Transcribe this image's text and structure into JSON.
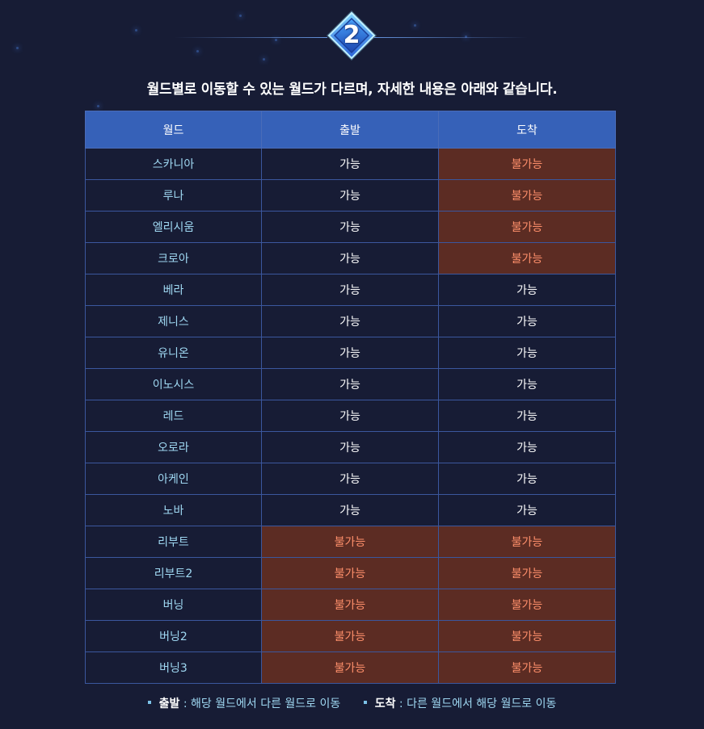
{
  "header": {
    "step_number": "2",
    "headline": "월드별로 이동할 수 있는 월드가 다르며, 자세한 내용은 아래와 같습니다."
  },
  "table": {
    "headers": [
      "월드",
      "출발",
      "도착"
    ],
    "rows": [
      {
        "world": "스카니아",
        "departure": "가능",
        "arrival": "불가능"
      },
      {
        "world": "루나",
        "departure": "가능",
        "arrival": "불가능"
      },
      {
        "world": "엘리시움",
        "departure": "가능",
        "arrival": "불가능"
      },
      {
        "world": "크로아",
        "departure": "가능",
        "arrival": "불가능"
      },
      {
        "world": "베라",
        "departure": "가능",
        "arrival": "가능"
      },
      {
        "world": "제니스",
        "departure": "가능",
        "arrival": "가능"
      },
      {
        "world": "유니온",
        "departure": "가능",
        "arrival": "가능"
      },
      {
        "world": "이노시스",
        "departure": "가능",
        "arrival": "가능"
      },
      {
        "world": "레드",
        "departure": "가능",
        "arrival": "가능"
      },
      {
        "world": "오로라",
        "departure": "가능",
        "arrival": "가능"
      },
      {
        "world": "아케인",
        "departure": "가능",
        "arrival": "가능"
      },
      {
        "world": "노바",
        "departure": "가능",
        "arrival": "가능"
      },
      {
        "world": "리부트",
        "departure": "불가능",
        "arrival": "불가능"
      },
      {
        "world": "리부트2",
        "departure": "불가능",
        "arrival": "불가능"
      },
      {
        "world": "버닝",
        "departure": "불가능",
        "arrival": "불가능"
      },
      {
        "world": "버닝2",
        "departure": "불가능",
        "arrival": "불가능"
      },
      {
        "world": "버닝3",
        "departure": "불가능",
        "arrival": "불가능"
      }
    ]
  },
  "footnotes": [
    {
      "term": "출발",
      "description": " : 해당 월드에서 다른 월드로 이동"
    },
    {
      "term": "도착",
      "description": " : 다른 월드에서 해당 월드로 이동"
    }
  ],
  "colors": {
    "background": "#171c35",
    "header_blue": "#3661b8",
    "unavailable_bg": "#5c2c23",
    "unavailable_text": "#ff8f6b",
    "world_text": "#9fd8f2"
  }
}
